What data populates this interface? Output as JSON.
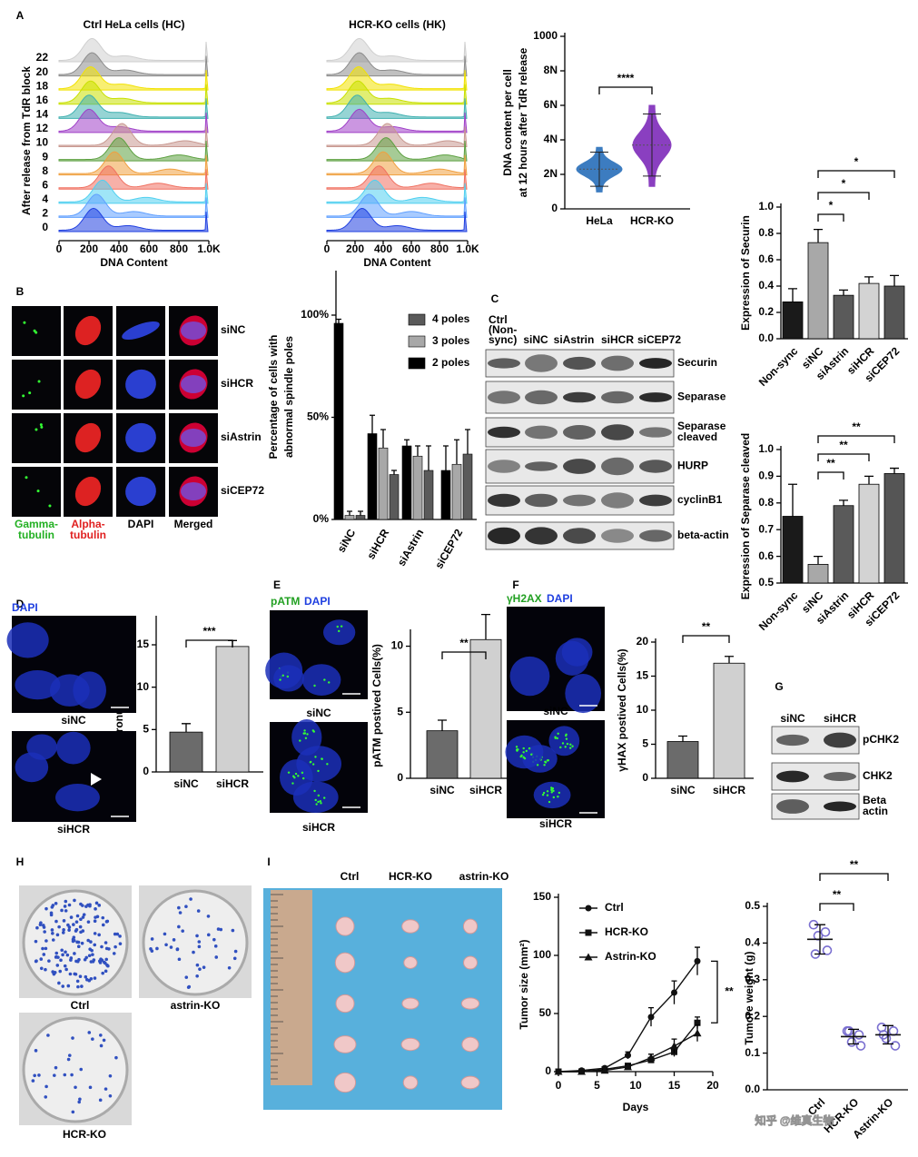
{
  "panel_labels": [
    "A",
    "B",
    "C",
    "D",
    "E",
    "F",
    "G",
    "H",
    "I"
  ],
  "chart_data": [
    {
      "type": "ridgeline",
      "title": "Ctrl HeLa cells (HC)",
      "y_label": "After release from TdR block",
      "x_label": "DNA Content",
      "categories": [
        "22",
        "20",
        "18",
        "16",
        "14",
        "12",
        "10",
        "9",
        "8",
        "6",
        "4",
        "2",
        "0"
      ],
      "values": [
        220,
        220,
        210,
        210,
        200,
        200,
        420,
        400,
        370,
        330,
        290,
        250,
        230
      ],
      "colors": [
        "#cfcfcf",
        "#8c8c8c",
        "#f2e200",
        "#c8e000",
        "#3fb0b0",
        "#a040c8",
        "#c89890",
        "#5ca040",
        "#f0a040",
        "#f07060",
        "#50d0f0",
        "#60a0ff",
        "#2040e0"
      ],
      "xlim": [
        0,
        1000
      ],
      "xticks": [
        0,
        200,
        400,
        600,
        800,
        {
          "value": 1000,
          "label": "1.0K"
        }
      ]
    },
    {
      "type": "ridgeline",
      "title": "HCR-KO cells (HK)",
      "x_label": "DNA Content",
      "values": [
        230,
        230,
        225,
        220,
        215,
        230,
        430,
        420,
        400,
        370,
        340,
        300,
        250
      ],
      "colors": [
        "#cfcfcf",
        "#8c8c8c",
        "#f2e200",
        "#c8e000",
        "#3fb0b0",
        "#a040c8",
        "#c89890",
        "#5ca040",
        "#f0a040",
        "#f07060",
        "#50d0f0",
        "#60a0ff",
        "#2040e0"
      ],
      "xlim": [
        0,
        1000
      ],
      "xticks": [
        0,
        200,
        400,
        600,
        800,
        {
          "value": 1000,
          "label": "1.0K"
        }
      ]
    },
    {
      "type": "violin",
      "y_label": [
        "DNA content per cell",
        "at 12 hours after TdR release"
      ],
      "categories": [
        "HeLa",
        "HCR-KO"
      ],
      "values": [
        2.3,
        3.7
      ],
      "colors": [
        "#3c7cc0",
        "#8a3fc0"
      ],
      "ylim": [
        0,
        10
      ],
      "yticks": [
        0,
        {
          "value": 2,
          "label": "2N"
        },
        {
          "value": 4,
          "label": "4N"
        },
        {
          "value": 6,
          "label": "6N"
        },
        {
          "value": 8,
          "label": "8N"
        }
      ],
      "ytop_label": "1000",
      "annotations": [
        "****"
      ]
    },
    {
      "type": "grouped_bar",
      "y_label": [
        "Percentage of cells with",
        "abnormal spindle poles"
      ],
      "categories": [
        "siNC",
        "siHCR",
        "siAstrin",
        "siCEP72"
      ],
      "series": [
        {
          "name": "4 poles",
          "color": "#5a5a5a",
          "values": [
            2,
            22,
            24,
            32
          ],
          "errors": [
            2,
            2,
            12,
            12
          ]
        },
        {
          "name": "3 poles",
          "color": "#a8a8a8",
          "values": [
            2,
            35,
            31,
            27
          ],
          "errors": [
            2,
            9,
            5,
            12
          ]
        },
        {
          "name": "2 poles",
          "color": "#000000",
          "values": [
            96,
            42,
            36,
            24
          ],
          "errors": [
            2,
            9,
            3,
            12
          ]
        }
      ],
      "ylim": [
        0,
        120
      ],
      "yticks": [
        {
          "value": 0,
          "label": "0%"
        },
        {
          "value": 50,
          "label": "50%"
        },
        {
          "value": 100,
          "label": "100%"
        }
      ],
      "legend": "upper right"
    },
    {
      "type": "bar",
      "y_label": "Expression of Securin",
      "categories": [
        "Non-sync",
        "siNC",
        "siAstrin",
        "siHCR",
        "siCEP72"
      ],
      "values": [
        0.28,
        0.73,
        0.33,
        0.42,
        0.4
      ],
      "errors": [
        0.1,
        0.1,
        0.04,
        0.05,
        0.08
      ],
      "colors": [
        "#1a1a1a",
        "#a8a8a8",
        "#5a5a5a",
        "#d3d3d3",
        "#555555"
      ],
      "ylim": [
        0,
        1
      ],
      "yticks": [
        {
          "value": 0,
          "label": "0.0"
        },
        0.2,
        0.4,
        0.6,
        0.8,
        {
          "value": 1,
          "label": "1.0"
        }
      ],
      "annotations": [
        "*",
        "*",
        "*"
      ]
    },
    {
      "type": "bar",
      "y_label": "Expression of Separase cleaved",
      "categories": [
        "Non-sync",
        "siNC",
        "siAstrin",
        "siHCR",
        "siCEP72"
      ],
      "values": [
        0.75,
        0.57,
        0.79,
        0.87,
        0.91
      ],
      "errors": [
        0.12,
        0.03,
        0.02,
        0.03,
        0.02
      ],
      "colors": [
        "#1a1a1a",
        "#a8a8a8",
        "#5a5a5a",
        "#d3d3d3",
        "#555555"
      ],
      "ylim": [
        0.5,
        1
      ],
      "yticks": [
        0.5,
        0.6,
        0.7,
        0.8,
        0.9,
        {
          "value": 1,
          "label": "1.0"
        }
      ],
      "annotations": [
        "**",
        "**",
        "**"
      ]
    },
    {
      "type": "bar",
      "y_label": "Micronuclei Cells (%)",
      "categories": [
        "siNC",
        "siHCR"
      ],
      "values": [
        4.7,
        14.8
      ],
      "errors": [
        1,
        0.7
      ],
      "colors": [
        "#6b6b6b",
        "#d0d0d0"
      ],
      "ylim": [
        0,
        18
      ],
      "yticks": [
        0,
        5,
        10,
        15
      ],
      "annotations": [
        "***"
      ]
    },
    {
      "type": "bar",
      "y_label": "pATM postived Cells(%)",
      "categories": [
        "siNC",
        "siHCR"
      ],
      "values": [
        3.6,
        10.5
      ],
      "errors": [
        0.8,
        1.9
      ],
      "colors": [
        "#6b6b6b",
        "#d0d0d0"
      ],
      "ylim": [
        0,
        11
      ],
      "yticks": [
        0,
        5,
        10
      ],
      "annotations": [
        "**"
      ]
    },
    {
      "type": "bar",
      "y_label": "γHAX postived Cells(%)",
      "categories": [
        "siNC",
        "siHCR"
      ],
      "values": [
        5.4,
        16.9
      ],
      "errors": [
        0.8,
        1
      ],
      "colors": [
        "#6b6b6b",
        "#d0d0d0"
      ],
      "ylim": [
        0,
        20
      ],
      "yticks": [
        0,
        5,
        10,
        15,
        20
      ],
      "annotations": [
        "**"
      ]
    },
    {
      "type": "line",
      "y_label": "Tumor size (mm²)",
      "x_label": "Days",
      "x": [
        0,
        3,
        6,
        9,
        12,
        15,
        18
      ],
      "series": [
        {
          "name": "Ctrl",
          "color": "#111111",
          "marker": "circle",
          "values": [
            0,
            1,
            3,
            14,
            47,
            68,
            95
          ],
          "errors": [
            0,
            0,
            1,
            3,
            8,
            10,
            12
          ]
        },
        {
          "name": "HCR-KO",
          "color": "#111111",
          "marker": "square",
          "values": [
            0,
            0,
            2,
            5,
            10,
            17,
            42
          ],
          "errors": [
            0,
            0,
            1,
            2,
            2,
            4,
            5
          ]
        },
        {
          "name": "Astrin-KO",
          "color": "#111111",
          "marker": "triangle",
          "values": [
            0,
            0,
            1,
            4,
            12,
            22,
            33
          ],
          "errors": [
            0,
            0,
            1,
            2,
            3,
            6,
            7
          ]
        }
      ],
      "xlim": [
        0,
        20
      ],
      "xticks": [
        0,
        5,
        10,
        15,
        20
      ],
      "ylim": [
        0,
        150
      ],
      "yticks": [
        0,
        50,
        100,
        150
      ],
      "annotations": [
        "**"
      ],
      "legend": "upper left"
    },
    {
      "type": "dot",
      "y_label": "Tumore weight (g)",
      "categories": [
        "Ctrl",
        "HCR-KO",
        "Astrin-KO"
      ],
      "points": [
        [
          0.45,
          0.43,
          0.42,
          0.38,
          0.37
        ],
        [
          0.16,
          0.15,
          0.13,
          0.12,
          0.16
        ],
        [
          0.17,
          0.16,
          0.14,
          0.12,
          0.15
        ]
      ],
      "means": [
        0.41,
        0.145,
        0.15
      ],
      "errors": [
        0.04,
        0.02,
        0.025
      ],
      "color": "#7a6fd0",
      "ylim": [
        0,
        0.5
      ],
      "yticks": [
        {
          "value": 0,
          "label": "0.0"
        },
        0.1,
        0.2,
        0.3,
        0.4,
        0.5
      ],
      "annotations": [
        "**",
        "**"
      ]
    }
  ],
  "panel_b": {
    "rows": [
      "siNC",
      "siHCR",
      "siAstrin",
      "siCEP72"
    ],
    "columns": [
      [
        "Gamma-",
        "tubulin"
      ],
      [
        "Alpha-",
        "tubulin"
      ],
      [
        "DAPI"
      ],
      [
        "Merged"
      ]
    ],
    "column_colors": [
      "#22b022",
      "#e02020",
      "#000000",
      "#000000"
    ]
  },
  "panel_c": {
    "lanes": [
      [
        "Ctrl",
        "(Non-",
        "sync)"
      ],
      [
        "siNC"
      ],
      [
        "siAstrin"
      ],
      [
        "siHCR"
      ],
      [
        "siCEP72"
      ]
    ],
    "bands": [
      [
        "Securin"
      ],
      [
        "Separase"
      ],
      [
        "Separase",
        "cleaved"
      ],
      [
        "HURP"
      ],
      [
        "cyclinB1"
      ],
      [
        "beta-actin"
      ]
    ]
  },
  "panel_d": {
    "stain": "DAPI",
    "images": [
      "siNC",
      "siHCR"
    ]
  },
  "panel_e": {
    "stains": [
      "pATM",
      "DAPI"
    ],
    "images": [
      "siNC",
      "siHCR"
    ]
  },
  "panel_f": {
    "stains": [
      "γH2AX",
      "DAPI"
    ],
    "images": [
      "siNC",
      "siHCR"
    ]
  },
  "panel_g": {
    "lanes": [
      "siNC",
      "siHCR"
    ],
    "bands": [
      [
        "pCHK2"
      ],
      [
        "CHK2"
      ],
      [
        "Beta",
        "actin"
      ]
    ]
  },
  "panel_h": {
    "dishes": [
      "Ctrl",
      "astrin-KO",
      "HCR-KO"
    ]
  },
  "panel_i": {
    "columns": [
      "Ctrl",
      "HCR-KO",
      "astrin-KO"
    ]
  },
  "watermark": "知乎 @维真生物"
}
